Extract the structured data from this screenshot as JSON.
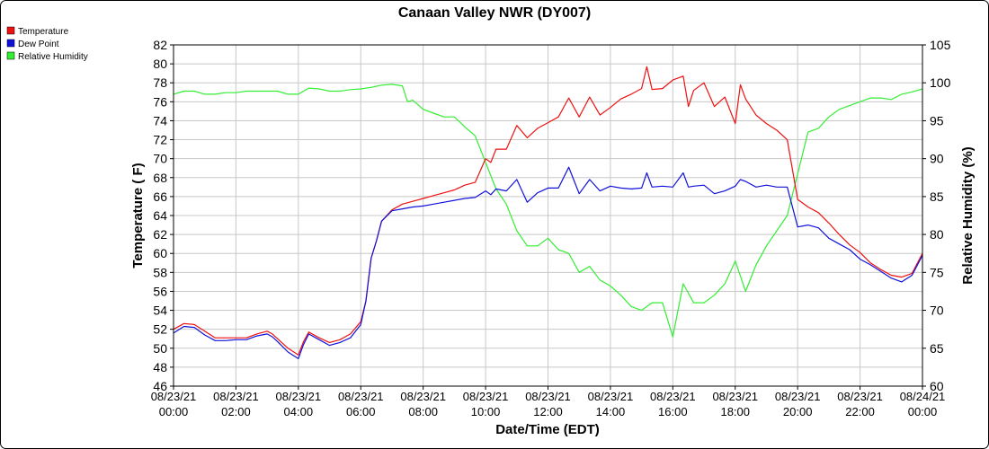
{
  "chart_data": {
    "type": "line",
    "title": "Canaan Valley NWR (DY007)",
    "xlabel": "Date/Time (EDT)",
    "ylabel": "Temperature ( F)",
    "y2label": "Relative Humidity (%)",
    "ylim": [
      46,
      82
    ],
    "y2lim": [
      60,
      105
    ],
    "yticks": [
      "46",
      "48",
      "50",
      "52",
      "54",
      "56",
      "58",
      "60",
      "62",
      "64",
      "66",
      "68",
      "70",
      "72",
      "74",
      "76",
      "78",
      "80",
      "82"
    ],
    "y2ticks": [
      "60",
      "65",
      "70",
      "75",
      "80",
      "85",
      "90",
      "95",
      "100",
      "105"
    ],
    "xticks": [
      {
        "date": "08/23/21",
        "time": "00:00"
      },
      {
        "date": "08/23/21",
        "time": "02:00"
      },
      {
        "date": "08/23/21",
        "time": "04:00"
      },
      {
        "date": "08/23/21",
        "time": "06:00"
      },
      {
        "date": "08/23/21",
        "time": "08:00"
      },
      {
        "date": "08/23/21",
        "time": "10:00"
      },
      {
        "date": "08/23/21",
        "time": "12:00"
      },
      {
        "date": "08/23/21",
        "time": "14:00"
      },
      {
        "date": "08/23/21",
        "time": "16:00"
      },
      {
        "date": "08/23/21",
        "time": "18:00"
      },
      {
        "date": "08/23/21",
        "time": "20:00"
      },
      {
        "date": "08/23/21",
        "time": "22:00"
      },
      {
        "date": "08/24/21",
        "time": "00:00"
      }
    ],
    "grid": true,
    "legend_position": "top-left",
    "series": [
      {
        "name": "Temperature",
        "color": "#ee1111",
        "axis": "left",
        "points": [
          [
            "08/23/21 00:00",
            52.0
          ],
          [
            "08/23/21 00:20",
            52.6
          ],
          [
            "08/23/21 00:40",
            52.5
          ],
          [
            "08/23/21 01:00",
            51.8
          ],
          [
            "08/23/21 01:20",
            51.1
          ],
          [
            "08/23/21 01:40",
            51.1
          ],
          [
            "08/23/21 02:00",
            51.1
          ],
          [
            "08/23/21 02:20",
            51.1
          ],
          [
            "08/23/21 02:40",
            51.5
          ],
          [
            "08/23/21 03:00",
            51.8
          ],
          [
            "08/23/21 03:10",
            51.5
          ],
          [
            "08/23/21 03:20",
            51.0
          ],
          [
            "08/23/21 03:40",
            50.0
          ],
          [
            "08/23/21 04:00",
            49.3
          ],
          [
            "08/23/21 04:10",
            50.7
          ],
          [
            "08/23/21 04:20",
            51.7
          ],
          [
            "08/23/21 04:40",
            51.1
          ],
          [
            "08/23/21 05:00",
            50.6
          ],
          [
            "08/23/21 05:20",
            50.9
          ],
          [
            "08/23/21 05:40",
            51.5
          ],
          [
            "08/23/21 06:00",
            52.8
          ],
          [
            "08/23/21 06:10",
            55.0
          ],
          [
            "08/23/21 06:20",
            59.5
          ],
          [
            "08/23/21 06:30",
            61.3
          ],
          [
            "08/23/21 06:40",
            63.4
          ],
          [
            "08/23/21 07:00",
            64.6
          ],
          [
            "08/23/21 07:20",
            65.2
          ],
          [
            "08/23/21 07:40",
            65.5
          ],
          [
            "08/23/21 08:00",
            65.8
          ],
          [
            "08/23/21 08:20",
            66.1
          ],
          [
            "08/23/21 08:40",
            66.4
          ],
          [
            "08/23/21 09:00",
            66.7
          ],
          [
            "08/23/21 09:20",
            67.2
          ],
          [
            "08/23/21 09:40",
            67.5
          ],
          [
            "08/23/21 10:00",
            70.0
          ],
          [
            "08/23/21 10:10",
            69.6
          ],
          [
            "08/23/21 10:20",
            71.0
          ],
          [
            "08/23/21 10:40",
            71.0
          ],
          [
            "08/23/21 11:00",
            73.5
          ],
          [
            "08/23/21 11:20",
            72.2
          ],
          [
            "08/23/21 11:40",
            73.2
          ],
          [
            "08/23/21 12:00",
            73.8
          ],
          [
            "08/23/21 12:20",
            74.4
          ],
          [
            "08/23/21 12:40",
            76.4
          ],
          [
            "08/23/21 13:00",
            74.4
          ],
          [
            "08/23/21 13:20",
            76.5
          ],
          [
            "08/23/21 13:40",
            74.6
          ],
          [
            "08/23/21 14:00",
            75.4
          ],
          [
            "08/23/21 14:20",
            76.3
          ],
          [
            "08/23/21 14:40",
            76.8
          ],
          [
            "08/23/21 15:00",
            77.4
          ],
          [
            "08/23/21 15:10",
            79.7
          ],
          [
            "08/23/21 15:20",
            77.3
          ],
          [
            "08/23/21 15:40",
            77.4
          ],
          [
            "08/23/21 16:00",
            78.3
          ],
          [
            "08/23/21 16:20",
            78.7
          ],
          [
            "08/23/21 16:30",
            75.5
          ],
          [
            "08/23/21 16:40",
            77.2
          ],
          [
            "08/23/21 17:00",
            78.0
          ],
          [
            "08/23/21 17:20",
            75.5
          ],
          [
            "08/23/21 17:40",
            76.5
          ],
          [
            "08/23/21 18:00",
            73.7
          ],
          [
            "08/23/21 18:10",
            77.8
          ],
          [
            "08/23/21 18:20",
            76.3
          ],
          [
            "08/23/21 18:40",
            74.6
          ],
          [
            "08/23/21 19:00",
            73.7
          ],
          [
            "08/23/21 19:20",
            73.0
          ],
          [
            "08/23/21 19:40",
            72.0
          ],
          [
            "08/23/21 20:00",
            65.7
          ],
          [
            "08/23/21 20:20",
            64.9
          ],
          [
            "08/23/21 20:40",
            64.3
          ],
          [
            "08/23/21 21:00",
            63.2
          ],
          [
            "08/23/21 21:20",
            62.0
          ],
          [
            "08/23/21 21:40",
            60.9
          ],
          [
            "08/23/21 22:00",
            60.1
          ],
          [
            "08/23/21 22:20",
            59.0
          ],
          [
            "08/23/21 22:40",
            58.3
          ],
          [
            "08/23/21 23:00",
            57.7
          ],
          [
            "08/23/21 23:20",
            57.5
          ],
          [
            "08/23/21 23:40",
            57.9
          ],
          [
            "08/24/21 00:00",
            60.0
          ]
        ]
      },
      {
        "name": "Dew Point",
        "color": "#1111dd",
        "axis": "left",
        "points": [
          [
            "08/23/21 00:00",
            51.6
          ],
          [
            "08/23/21 00:20",
            52.3
          ],
          [
            "08/23/21 00:40",
            52.2
          ],
          [
            "08/23/21 01:00",
            51.4
          ],
          [
            "08/23/21 01:20",
            50.8
          ],
          [
            "08/23/21 01:40",
            50.8
          ],
          [
            "08/23/21 02:00",
            50.9
          ],
          [
            "08/23/21 02:20",
            50.9
          ],
          [
            "08/23/21 02:40",
            51.3
          ],
          [
            "08/23/21 03:00",
            51.5
          ],
          [
            "08/23/21 03:10",
            51.2
          ],
          [
            "08/23/21 03:20",
            50.7
          ],
          [
            "08/23/21 03:40",
            49.6
          ],
          [
            "08/23/21 04:00",
            48.9
          ],
          [
            "08/23/21 04:10",
            50.4
          ],
          [
            "08/23/21 04:20",
            51.5
          ],
          [
            "08/23/21 04:40",
            50.9
          ],
          [
            "08/23/21 05:00",
            50.3
          ],
          [
            "08/23/21 05:20",
            50.6
          ],
          [
            "08/23/21 05:40",
            51.1
          ],
          [
            "08/23/21 06:00",
            52.5
          ],
          [
            "08/23/21 06:10",
            55.0
          ],
          [
            "08/23/21 06:20",
            59.5
          ],
          [
            "08/23/21 06:30",
            61.3
          ],
          [
            "08/23/21 06:40",
            63.4
          ],
          [
            "08/23/21 07:00",
            64.5
          ],
          [
            "08/23/21 07:20",
            64.7
          ],
          [
            "08/23/21 07:40",
            64.9
          ],
          [
            "08/23/21 08:00",
            65.0
          ],
          [
            "08/23/21 08:20",
            65.2
          ],
          [
            "08/23/21 08:40",
            65.4
          ],
          [
            "08/23/21 09:00",
            65.6
          ],
          [
            "08/23/21 09:20",
            65.8
          ],
          [
            "08/23/21 09:40",
            65.9
          ],
          [
            "08/23/21 10:00",
            66.6
          ],
          [
            "08/23/21 10:10",
            66.2
          ],
          [
            "08/23/21 10:20",
            66.8
          ],
          [
            "08/23/21 10:40",
            66.6
          ],
          [
            "08/23/21 11:00",
            67.8
          ],
          [
            "08/23/21 11:20",
            65.4
          ],
          [
            "08/23/21 11:40",
            66.4
          ],
          [
            "08/23/21 12:00",
            66.9
          ],
          [
            "08/23/21 12:20",
            66.9
          ],
          [
            "08/23/21 12:40",
            69.1
          ],
          [
            "08/23/21 13:00",
            66.3
          ],
          [
            "08/23/21 13:20",
            67.8
          ],
          [
            "08/23/21 13:40",
            66.6
          ],
          [
            "08/23/21 14:00",
            67.1
          ],
          [
            "08/23/21 14:20",
            66.9
          ],
          [
            "08/23/21 14:40",
            66.8
          ],
          [
            "08/23/21 15:00",
            66.9
          ],
          [
            "08/23/21 15:10",
            68.5
          ],
          [
            "08/23/21 15:20",
            67.0
          ],
          [
            "08/23/21 15:40",
            67.1
          ],
          [
            "08/23/21 16:00",
            67.0
          ],
          [
            "08/23/21 16:20",
            68.5
          ],
          [
            "08/23/21 16:30",
            67.0
          ],
          [
            "08/23/21 16:40",
            67.1
          ],
          [
            "08/23/21 17:00",
            67.2
          ],
          [
            "08/23/21 17:20",
            66.3
          ],
          [
            "08/23/21 17:40",
            66.6
          ],
          [
            "08/23/21 18:00",
            67.1
          ],
          [
            "08/23/21 18:10",
            67.8
          ],
          [
            "08/23/21 18:20",
            67.6
          ],
          [
            "08/23/21 18:40",
            67.0
          ],
          [
            "08/23/21 19:00",
            67.2
          ],
          [
            "08/23/21 19:20",
            67.0
          ],
          [
            "08/23/21 19:40",
            67.0
          ],
          [
            "08/23/21 20:00",
            62.8
          ],
          [
            "08/23/21 20:20",
            63.0
          ],
          [
            "08/23/21 20:40",
            62.7
          ],
          [
            "08/23/21 21:00",
            61.6
          ],
          [
            "08/23/21 21:20",
            61.0
          ],
          [
            "08/23/21 21:40",
            60.4
          ],
          [
            "08/23/21 22:00",
            59.4
          ],
          [
            "08/23/21 22:20",
            58.8
          ],
          [
            "08/23/21 22:40",
            58.1
          ],
          [
            "08/23/21 23:00",
            57.4
          ],
          [
            "08/23/21 23:20",
            57.0
          ],
          [
            "08/23/21 23:40",
            57.7
          ],
          [
            "08/24/21 00:00",
            59.8
          ]
        ]
      },
      {
        "name": "Relative Humidity",
        "color": "#33ee33",
        "axis": "right",
        "points": [
          [
            "08/23/21 00:00",
            98.5
          ],
          [
            "08/23/21 00:20",
            98.9
          ],
          [
            "08/23/21 00:40",
            98.9
          ],
          [
            "08/23/21 01:00",
            98.5
          ],
          [
            "08/23/21 01:20",
            98.5
          ],
          [
            "08/23/21 01:40",
            98.7
          ],
          [
            "08/23/21 02:00",
            98.7
          ],
          [
            "08/23/21 02:20",
            98.9
          ],
          [
            "08/23/21 02:40",
            98.9
          ],
          [
            "08/23/21 03:00",
            98.9
          ],
          [
            "08/23/21 03:20",
            98.9
          ],
          [
            "08/23/21 03:40",
            98.5
          ],
          [
            "08/23/21 04:00",
            98.5
          ],
          [
            "08/23/21 04:20",
            99.3
          ],
          [
            "08/23/21 04:40",
            99.2
          ],
          [
            "08/23/21 05:00",
            98.9
          ],
          [
            "08/23/21 05:20",
            98.9
          ],
          [
            "08/23/21 05:40",
            99.1
          ],
          [
            "08/23/21 06:00",
            99.2
          ],
          [
            "08/23/21 06:20",
            99.4
          ],
          [
            "08/23/21 06:40",
            99.7
          ],
          [
            "08/23/21 07:00",
            99.8
          ],
          [
            "08/23/21 07:20",
            99.6
          ],
          [
            "08/23/21 07:30",
            97.5
          ],
          [
            "08/23/21 07:40",
            97.7
          ],
          [
            "08/23/21 08:00",
            96.5
          ],
          [
            "08/23/21 08:20",
            96.0
          ],
          [
            "08/23/21 08:40",
            95.5
          ],
          [
            "08/23/21 09:00",
            95.5
          ],
          [
            "08/23/21 09:20",
            94.2
          ],
          [
            "08/23/21 09:40",
            93.0
          ],
          [
            "08/23/21 10:00",
            89.5
          ],
          [
            "08/23/21 10:20",
            86.0
          ],
          [
            "08/23/21 10:40",
            84.0
          ],
          [
            "08/23/21 11:00",
            80.5
          ],
          [
            "08/23/21 11:20",
            78.5
          ],
          [
            "08/23/21 11:40",
            78.5
          ],
          [
            "08/23/21 12:00",
            79.5
          ],
          [
            "08/23/21 12:20",
            78.0
          ],
          [
            "08/23/21 12:40",
            77.5
          ],
          [
            "08/23/21 13:00",
            75.0
          ],
          [
            "08/23/21 13:20",
            75.8
          ],
          [
            "08/23/21 13:40",
            74.0
          ],
          [
            "08/23/21 14:00",
            73.2
          ],
          [
            "08/23/21 14:20",
            72.0
          ],
          [
            "08/23/21 14:40",
            70.5
          ],
          [
            "08/23/21 15:00",
            70.0
          ],
          [
            "08/23/21 15:20",
            71.0
          ],
          [
            "08/23/21 15:40",
            71.0
          ],
          [
            "08/23/21 16:00",
            66.5
          ],
          [
            "08/23/21 16:20",
            73.5
          ],
          [
            "08/23/21 16:40",
            71.0
          ],
          [
            "08/23/21 17:00",
            71.0
          ],
          [
            "08/23/21 17:20",
            72.0
          ],
          [
            "08/23/21 17:40",
            73.5
          ],
          [
            "08/23/21 18:00",
            76.5
          ],
          [
            "08/23/21 18:20",
            72.5
          ],
          [
            "08/23/21 18:40",
            76.0
          ],
          [
            "08/23/21 19:00",
            78.5
          ],
          [
            "08/23/21 19:20",
            80.5
          ],
          [
            "08/23/21 19:40",
            82.5
          ],
          [
            "08/23/21 20:00",
            88.0
          ],
          [
            "08/23/21 20:20",
            93.5
          ],
          [
            "08/23/21 20:40",
            94.0
          ],
          [
            "08/23/21 21:00",
            95.5
          ],
          [
            "08/23/21 21:20",
            96.5
          ],
          [
            "08/23/21 21:40",
            97.0
          ],
          [
            "08/23/21 22:00",
            97.5
          ],
          [
            "08/23/21 22:20",
            98.0
          ],
          [
            "08/23/21 22:40",
            98.0
          ],
          [
            "08/23/21 23:00",
            97.8
          ],
          [
            "08/23/21 23:20",
            98.5
          ],
          [
            "08/23/21 23:40",
            98.8
          ],
          [
            "08/24/21 00:00",
            99.2
          ]
        ]
      }
    ]
  }
}
